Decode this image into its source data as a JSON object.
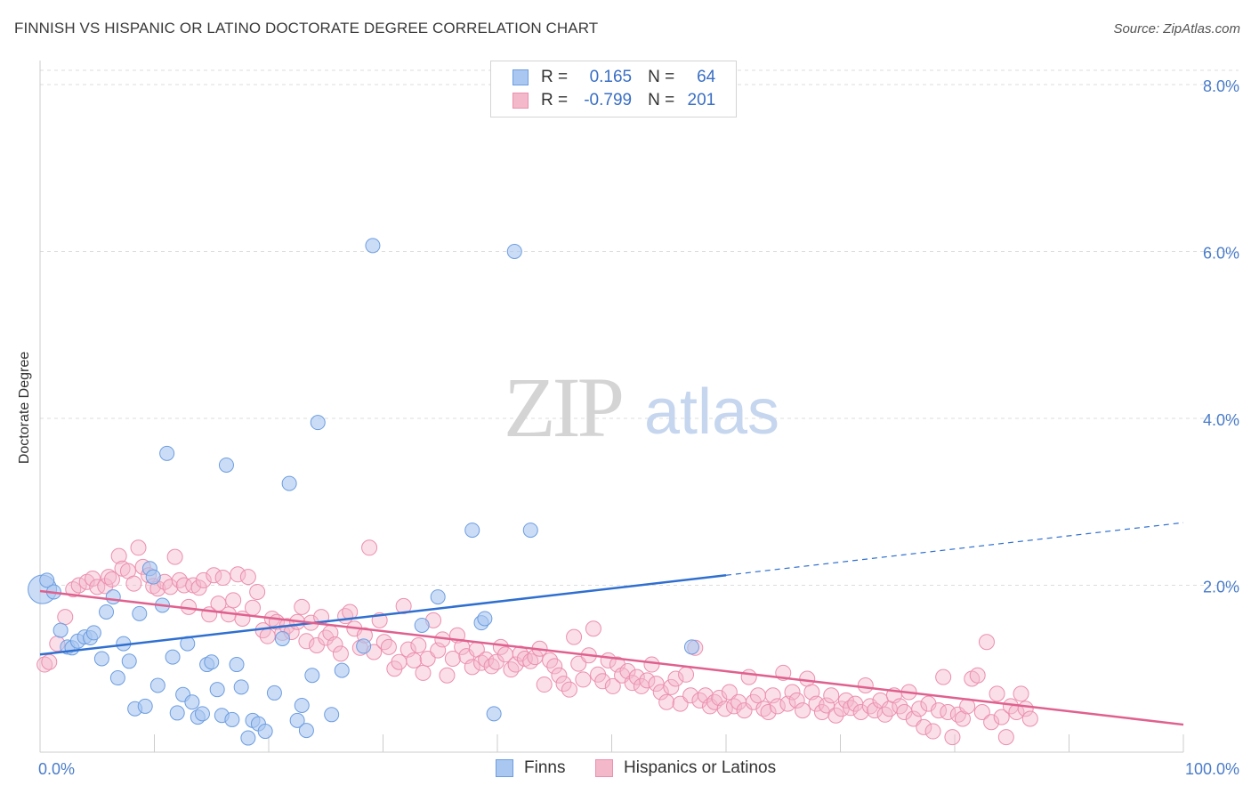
{
  "title": "FINNISH VS HISPANIC OR LATINO DOCTORATE DEGREE CORRELATION CHART",
  "source": "Source: ZipAtlas.com",
  "watermark": {
    "zip": "ZIP",
    "atlas": "atlas"
  },
  "legend": {
    "rows": [
      {
        "r_label": "R =",
        "r_value": "0.165",
        "n_label": "N =",
        "n_value": "64"
      },
      {
        "r_label": "R =",
        "r_value": "-0.799",
        "n_label": "N =",
        "n_value": "201"
      }
    ]
  },
  "bottom_legend": [
    "Finns",
    "Hispanics or Latinos"
  ],
  "colors": {
    "blue_fill": "#a9c7f0",
    "blue_stroke": "#6d9de0",
    "blue_line": "#2f6fd0",
    "pink_fill": "#f4b8cb",
    "pink_stroke": "#ec8fae",
    "pink_line": "#e0608e",
    "axis_label": "#4a7cc9",
    "grid": "#dddddd"
  },
  "chart_data": {
    "type": "scatter",
    "title": "FINNISH VS HISPANIC OR LATINO DOCTORATE DEGREE CORRELATION CHART",
    "xlabel": "",
    "ylabel": "Doctorate Degree",
    "xlim": [
      0,
      100
    ],
    "ylim": [
      0,
      8.0
    ],
    "x_tick_labels": [
      "0.0%",
      "100.0%"
    ],
    "y_ticks": [
      2.0,
      4.0,
      6.0,
      8.0
    ],
    "y_tick_labels": [
      "2.0%",
      "4.0%",
      "6.0%",
      "8.0%"
    ],
    "grid": "horizontal dashed",
    "legend_position": "top-center",
    "series": [
      {
        "name": "Finns",
        "r": 0.165,
        "n": 64,
        "trend": {
          "x0": 0,
          "y0": 1.17,
          "x1": 60,
          "y1": 2.12,
          "dashed_to_x": 100,
          "dashed_y": 2.75
        },
        "points": [
          [
            0.2,
            1.95
          ],
          [
            0.6,
            2.06
          ],
          [
            1.2,
            1.92
          ],
          [
            1.8,
            1.46
          ],
          [
            2.4,
            1.26
          ],
          [
            2.8,
            1.25
          ],
          [
            3.3,
            1.33
          ],
          [
            3.9,
            1.38
          ],
          [
            4.4,
            1.37
          ],
          [
            4.7,
            1.43
          ],
          [
            5.4,
            1.12
          ],
          [
            5.8,
            1.68
          ],
          [
            6.4,
            1.86
          ],
          [
            6.8,
            0.89
          ],
          [
            7.3,
            1.3
          ],
          [
            7.8,
            1.09
          ],
          [
            8.3,
            0.52
          ],
          [
            8.7,
            1.66
          ],
          [
            9.2,
            0.55
          ],
          [
            9.6,
            2.2
          ],
          [
            9.9,
            2.1
          ],
          [
            10.3,
            0.8
          ],
          [
            10.7,
            1.76
          ],
          [
            11.1,
            3.58
          ],
          [
            11.6,
            1.14
          ],
          [
            12.0,
            0.47
          ],
          [
            12.5,
            0.69
          ],
          [
            12.9,
            1.3
          ],
          [
            13.3,
            0.6
          ],
          [
            13.8,
            0.42
          ],
          [
            14.2,
            0.46
          ],
          [
            14.6,
            1.05
          ],
          [
            15.0,
            1.08
          ],
          [
            15.5,
            0.75
          ],
          [
            15.9,
            0.44
          ],
          [
            16.3,
            3.44
          ],
          [
            16.8,
            0.39
          ],
          [
            17.2,
            1.05
          ],
          [
            17.6,
            0.78
          ],
          [
            18.2,
            0.17
          ],
          [
            18.6,
            0.38
          ],
          [
            19.1,
            0.34
          ],
          [
            19.7,
            0.25
          ],
          [
            20.5,
            0.71
          ],
          [
            21.2,
            1.36
          ],
          [
            21.8,
            3.22
          ],
          [
            22.5,
            0.38
          ],
          [
            22.9,
            0.56
          ],
          [
            23.3,
            0.26
          ],
          [
            23.8,
            0.92
          ],
          [
            24.3,
            3.95
          ],
          [
            25.5,
            0.45
          ],
          [
            26.4,
            0.98
          ],
          [
            28.3,
            1.27
          ],
          [
            29.1,
            6.07
          ],
          [
            33.4,
            1.52
          ],
          [
            34.8,
            1.86
          ],
          [
            37.8,
            2.66
          ],
          [
            38.6,
            1.55
          ],
          [
            38.9,
            1.6
          ],
          [
            39.7,
            0.46
          ],
          [
            41.5,
            6.0
          ],
          [
            42.9,
            2.66
          ],
          [
            57.0,
            1.26
          ]
        ]
      },
      {
        "name": "Hispanics or Latinos",
        "r": -0.799,
        "n": 201,
        "trend": {
          "x0": 0,
          "y0": 1.93,
          "x1": 100,
          "y1": 0.33
        },
        "points": [
          [
            0.4,
            1.05
          ],
          [
            0.8,
            1.08
          ],
          [
            1.5,
            1.3
          ],
          [
            2.2,
            1.62
          ],
          [
            2.9,
            1.95
          ],
          [
            3.4,
            2.0
          ],
          [
            4.1,
            2.04
          ],
          [
            4.6,
            2.08
          ],
          [
            5.0,
            1.98
          ],
          [
            5.7,
            1.99
          ],
          [
            6.0,
            2.1
          ],
          [
            6.3,
            2.07
          ],
          [
            6.9,
            2.35
          ],
          [
            7.2,
            2.2
          ],
          [
            7.7,
            2.17
          ],
          [
            8.2,
            2.02
          ],
          [
            8.6,
            2.45
          ],
          [
            9.0,
            2.22
          ],
          [
            9.5,
            2.12
          ],
          [
            9.9,
            1.99
          ],
          [
            10.3,
            1.96
          ],
          [
            10.9,
            2.04
          ],
          [
            11.4,
            1.98
          ],
          [
            11.8,
            2.34
          ],
          [
            12.2,
            2.06
          ],
          [
            12.6,
            2.0
          ],
          [
            13.0,
            1.74
          ],
          [
            13.4,
            2.0
          ],
          [
            13.9,
            1.97
          ],
          [
            14.3,
            2.06
          ],
          [
            14.8,
            1.65
          ],
          [
            15.2,
            2.12
          ],
          [
            15.6,
            1.78
          ],
          [
            16.0,
            2.09
          ],
          [
            16.5,
            1.65
          ],
          [
            16.9,
            1.82
          ],
          [
            17.3,
            2.13
          ],
          [
            17.7,
            1.6
          ],
          [
            18.2,
            2.1
          ],
          [
            18.6,
            1.73
          ],
          [
            19.0,
            1.92
          ],
          [
            19.5,
            1.46
          ],
          [
            19.9,
            1.39
          ],
          [
            20.3,
            1.6
          ],
          [
            20.7,
            1.56
          ],
          [
            21.2,
            1.43
          ],
          [
            21.6,
            1.51
          ],
          [
            22.0,
            1.44
          ],
          [
            22.5,
            1.56
          ],
          [
            22.9,
            1.74
          ],
          [
            23.3,
            1.33
          ],
          [
            23.7,
            1.55
          ],
          [
            24.2,
            1.28
          ],
          [
            24.6,
            1.62
          ],
          [
            25.0,
            1.37
          ],
          [
            25.4,
            1.43
          ],
          [
            25.8,
            1.29
          ],
          [
            26.3,
            1.18
          ],
          [
            26.7,
            1.63
          ],
          [
            27.1,
            1.68
          ],
          [
            27.5,
            1.48
          ],
          [
            28.0,
            1.25
          ],
          [
            28.4,
            1.4
          ],
          [
            28.8,
            2.45
          ],
          [
            29.2,
            1.2
          ],
          [
            29.7,
            1.58
          ],
          [
            30.1,
            1.32
          ],
          [
            30.5,
            1.26
          ],
          [
            31.0,
            1.0
          ],
          [
            31.4,
            1.08
          ],
          [
            31.8,
            1.75
          ],
          [
            32.2,
            1.23
          ],
          [
            32.7,
            1.1
          ],
          [
            33.1,
            1.28
          ],
          [
            33.5,
            0.95
          ],
          [
            33.9,
            1.12
          ],
          [
            34.4,
            1.58
          ],
          [
            34.8,
            1.22
          ],
          [
            35.2,
            1.35
          ],
          [
            35.6,
            0.92
          ],
          [
            36.1,
            1.12
          ],
          [
            36.5,
            1.4
          ],
          [
            36.9,
            1.26
          ],
          [
            37.3,
            1.15
          ],
          [
            37.8,
            1.02
          ],
          [
            38.2,
            1.23
          ],
          [
            38.6,
            1.07
          ],
          [
            39.0,
            1.11
          ],
          [
            39.5,
            1.03
          ],
          [
            39.9,
            1.08
          ],
          [
            40.3,
            1.26
          ],
          [
            40.7,
            1.17
          ],
          [
            41.2,
            0.99
          ],
          [
            41.6,
            1.05
          ],
          [
            42.0,
            1.18
          ],
          [
            42.4,
            1.12
          ],
          [
            42.9,
            1.09
          ],
          [
            43.3,
            1.14
          ],
          [
            43.7,
            1.24
          ],
          [
            44.1,
            0.81
          ],
          [
            44.6,
            1.1
          ],
          [
            45.0,
            1.03
          ],
          [
            45.4,
            0.92
          ],
          [
            45.8,
            0.82
          ],
          [
            46.3,
            0.75
          ],
          [
            46.7,
            1.38
          ],
          [
            47.1,
            1.06
          ],
          [
            47.5,
            0.87
          ],
          [
            48.0,
            1.16
          ],
          [
            48.4,
            1.48
          ],
          [
            48.8,
            0.93
          ],
          [
            49.2,
            0.85
          ],
          [
            49.7,
            1.1
          ],
          [
            50.1,
            0.79
          ],
          [
            50.5,
            1.05
          ],
          [
            50.9,
            0.92
          ],
          [
            51.4,
            0.97
          ],
          [
            51.8,
            0.83
          ],
          [
            52.2,
            0.9
          ],
          [
            52.6,
            0.79
          ],
          [
            53.1,
            0.86
          ],
          [
            53.5,
            1.05
          ],
          [
            53.9,
            0.82
          ],
          [
            54.3,
            0.72
          ],
          [
            54.8,
            0.6
          ],
          [
            55.2,
            0.78
          ],
          [
            55.6,
            0.88
          ],
          [
            56.0,
            0.58
          ],
          [
            56.5,
            0.93
          ],
          [
            56.9,
            0.68
          ],
          [
            57.3,
            1.25
          ],
          [
            57.7,
            0.62
          ],
          [
            58.2,
            0.68
          ],
          [
            58.6,
            0.55
          ],
          [
            59.0,
            0.6
          ],
          [
            59.4,
            0.65
          ],
          [
            59.9,
            0.52
          ],
          [
            60.3,
            0.72
          ],
          [
            60.7,
            0.55
          ],
          [
            61.1,
            0.6
          ],
          [
            61.6,
            0.5
          ],
          [
            62.0,
            0.9
          ],
          [
            62.4,
            0.6
          ],
          [
            62.8,
            0.68
          ],
          [
            63.3,
            0.52
          ],
          [
            63.7,
            0.48
          ],
          [
            64.1,
            0.68
          ],
          [
            64.5,
            0.55
          ],
          [
            65.0,
            0.95
          ],
          [
            65.4,
            0.58
          ],
          [
            65.8,
            0.72
          ],
          [
            66.2,
            0.62
          ],
          [
            66.7,
            0.5
          ],
          [
            67.1,
            0.88
          ],
          [
            67.5,
            0.72
          ],
          [
            67.9,
            0.58
          ],
          [
            68.4,
            0.48
          ],
          [
            68.8,
            0.56
          ],
          [
            69.2,
            0.68
          ],
          [
            69.6,
            0.44
          ],
          [
            70.1,
            0.52
          ],
          [
            70.5,
            0.62
          ],
          [
            70.9,
            0.53
          ],
          [
            71.3,
            0.58
          ],
          [
            71.8,
            0.48
          ],
          [
            72.2,
            0.8
          ],
          [
            72.6,
            0.55
          ],
          [
            73.0,
            0.5
          ],
          [
            73.5,
            0.62
          ],
          [
            73.9,
            0.45
          ],
          [
            74.3,
            0.52
          ],
          [
            74.7,
            0.68
          ],
          [
            75.2,
            0.55
          ],
          [
            75.6,
            0.48
          ],
          [
            76.0,
            0.72
          ],
          [
            76.4,
            0.4
          ],
          [
            76.9,
            0.52
          ],
          [
            77.3,
            0.3
          ],
          [
            77.7,
            0.58
          ],
          [
            78.1,
            0.25
          ],
          [
            78.6,
            0.5
          ],
          [
            79.0,
            0.9
          ],
          [
            79.4,
            0.48
          ],
          [
            79.8,
            0.18
          ],
          [
            80.3,
            0.45
          ],
          [
            80.7,
            0.4
          ],
          [
            81.1,
            0.55
          ],
          [
            81.5,
            0.88
          ],
          [
            82.0,
            0.92
          ],
          [
            82.4,
            0.48
          ],
          [
            82.8,
            1.32
          ],
          [
            83.2,
            0.36
          ],
          [
            83.7,
            0.7
          ],
          [
            84.1,
            0.42
          ],
          [
            84.5,
            0.18
          ],
          [
            84.9,
            0.55
          ],
          [
            85.4,
            0.48
          ],
          [
            85.8,
            0.7
          ],
          [
            86.2,
            0.52
          ],
          [
            86.6,
            0.4
          ]
        ]
      }
    ]
  }
}
